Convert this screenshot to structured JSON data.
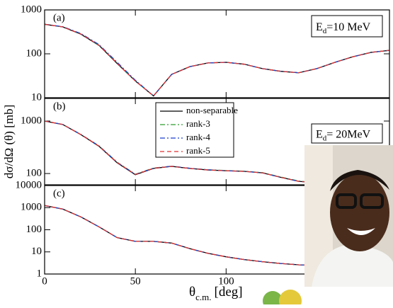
{
  "chart_data": [
    {
      "type": "line",
      "panel_label": "(a)",
      "energy_main": "E",
      "energy_sub": "d",
      "energy_rest": "=10 MeV",
      "log_y": true,
      "ylim": [
        10,
        1000
      ],
      "yticks": [
        10,
        100,
        1000
      ],
      "x": [
        0,
        10,
        20,
        30,
        40,
        50,
        60,
        70,
        80,
        90,
        100,
        110,
        120,
        130,
        140,
        150,
        160,
        170,
        180,
        190
      ],
      "series": [
        {
          "color": "#000000",
          "line_style": "solid",
          "values": [
            470,
            410,
            280,
            155,
            60,
            24,
            11,
            34,
            51,
            62,
            64,
            58,
            46,
            40,
            37,
            46,
            64,
            86,
            108,
            120
          ]
        },
        {
          "color": "#2e9e2e",
          "line_style": "dashdot",
          "values": [
            470,
            412,
            285,
            158,
            62,
            24,
            11,
            34,
            51,
            62,
            64,
            58,
            46,
            40,
            37,
            46,
            64,
            86,
            108,
            120
          ]
        },
        {
          "color": "#1a3fd0",
          "line_style": "dashdot",
          "values": [
            472,
            415,
            290,
            162,
            64,
            25,
            11,
            34,
            51,
            62,
            64,
            58,
            46,
            40,
            37,
            46,
            64,
            86,
            108,
            120
          ]
        },
        {
          "color": "#e03030",
          "line_style": "dashed",
          "values": [
            470,
            411,
            283,
            157,
            61,
            24,
            11,
            34,
            51,
            62,
            64,
            58,
            46,
            40,
            37,
            46,
            64,
            86,
            108,
            120
          ]
        }
      ]
    },
    {
      "type": "line",
      "panel_label": "(b)",
      "energy_main": "E",
      "energy_sub": "d",
      "energy_rest": "= 20MeV",
      "y_label": "dσ/dΩ (θ) [mb]",
      "log_y": true,
      "ylim": [
        61,
        2700
      ],
      "yticks": [
        100,
        1000
      ],
      "x": [
        0,
        10,
        20,
        30,
        40,
        50,
        60,
        70,
        80,
        90,
        100,
        110,
        120,
        130,
        140,
        150,
        160,
        170,
        180,
        190
      ],
      "series": [
        {
          "name": "non-separable",
          "color": "#000000",
          "line_style": "solid",
          "values": [
            1000,
            860,
            550,
            330,
            160,
            95,
            125,
            137,
            125,
            117,
            113,
            110,
            103,
            85,
            71,
            67,
            71,
            80,
            91,
            97
          ]
        },
        {
          "name": "rank-3",
          "color": "#2e9e2e",
          "line_style": "dashdot",
          "values": [
            1000,
            862,
            556,
            336,
            164,
            97,
            127,
            138,
            126,
            118,
            114,
            111,
            104,
            86,
            72,
            67,
            71,
            80,
            91,
            97
          ]
        },
        {
          "name": "rank-4",
          "color": "#1a3fd0",
          "line_style": "dashdot",
          "values": [
            1000,
            862,
            555,
            335,
            163,
            96,
            126,
            138,
            126,
            118,
            113,
            110,
            103,
            85,
            71,
            67,
            71,
            80,
            91,
            97
          ]
        },
        {
          "name": "rank-5",
          "color": "#e03030",
          "line_style": "dashed",
          "values": [
            1000,
            861,
            553,
            333,
            162,
            96,
            126,
            137,
            125,
            117,
            113,
            110,
            103,
            85,
            71,
            67,
            71,
            80,
            91,
            97
          ]
        }
      ]
    },
    {
      "type": "line",
      "panel_label": "(c)",
      "x_label_main": "θ",
      "x_label_sub": "c.m.",
      "x_label_unit": "[deg]",
      "xlim": [
        0,
        190
      ],
      "xticks": [
        0,
        50,
        100
      ],
      "log_y": true,
      "ylim": [
        1,
        10000
      ],
      "yticks": [
        1,
        10,
        100,
        1000,
        10000
      ],
      "x": [
        0,
        10,
        20,
        30,
        40,
        50,
        60,
        70,
        80,
        90,
        100,
        110,
        120,
        130,
        140,
        150,
        160,
        170,
        180,
        190
      ],
      "series": [
        {
          "color": "#000000",
          "line_style": "solid",
          "values": [
            1250,
            860,
            380,
            135,
            44,
            30,
            30,
            25,
            14,
            8.6,
            6,
            4.5,
            3.6,
            3.0,
            2.6,
            2.4,
            2.3,
            2.2,
            2.2,
            2.3
          ]
        },
        {
          "color": "#2e9e2e",
          "line_style": "dashdot",
          "values": [
            1250,
            860,
            380,
            135,
            44,
            30,
            30,
            25,
            14,
            8.6,
            6,
            4.5,
            3.6,
            3.0,
            2.6,
            2.4,
            2.3,
            2.2,
            2.2,
            2.3
          ]
        },
        {
          "color": "#1a3fd0",
          "line_style": "dashdot",
          "values": [
            1250,
            860,
            380,
            135,
            44,
            30,
            30,
            25,
            14,
            8.6,
            6,
            4.5,
            3.6,
            3.0,
            2.6,
            2.4,
            2.3,
            2.2,
            2.2,
            2.3
          ]
        },
        {
          "color": "#e03030",
          "line_style": "dashed",
          "values": [
            1250,
            860,
            380,
            135,
            44,
            30,
            30,
            25,
            14,
            8.6,
            6,
            4.5,
            3.6,
            3.0,
            2.6,
            2.4,
            2.3,
            2.2,
            2.2,
            2.3
          ]
        }
      ]
    }
  ]
}
